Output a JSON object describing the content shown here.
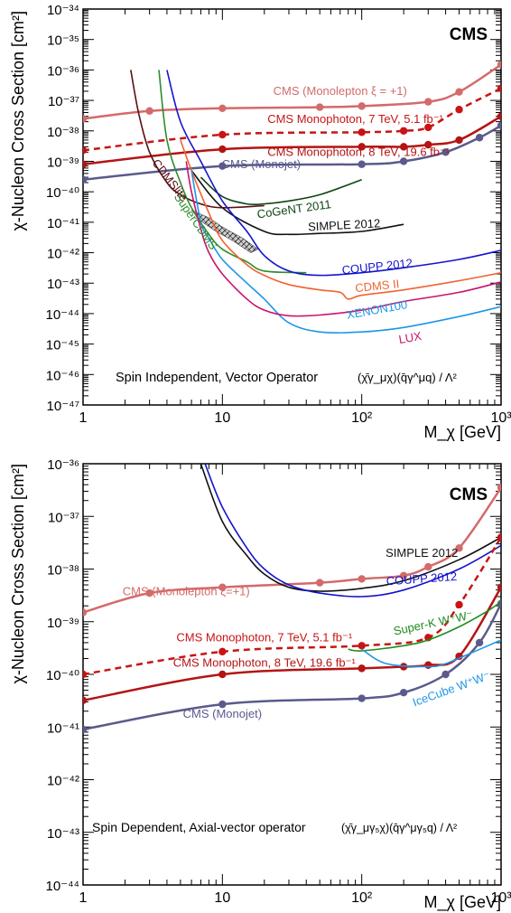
{
  "figure": {
    "panels": [
      "top",
      "bottom"
    ]
  },
  "chart_data": [
    {
      "type": "line",
      "panel": "top",
      "badge": "CMS",
      "xlabel": "M_χ [GeV]",
      "ylabel": "χ-Nucleon Cross Section [cm²]",
      "x_scale": "log",
      "y_scale": "log",
      "xlim": [
        1,
        1000
      ],
      "ylim": [
        1e-47,
        1e-34
      ],
      "x_ticks": [
        "1",
        "10",
        "10²",
        "10³"
      ],
      "y_ticks": [
        "10⁻⁴⁷",
        "10⁻⁴⁶",
        "10⁻⁴⁵",
        "10⁻⁴⁴",
        "10⁻⁴³",
        "10⁻⁴²",
        "10⁻⁴¹",
        "10⁻⁴⁰",
        "10⁻³⁹",
        "10⁻³⁸",
        "10⁻³⁷",
        "10⁻³⁶",
        "10⁻³⁵",
        "10⁻³⁴"
      ],
      "annotation_main": "Spin Independent, Vector Operator",
      "annotation_operator": "(χ̄γ_μχ)(q̄γ^μq) / Λ²",
      "series": [
        {
          "name": "CMS (Monolepton ξ = +1)",
          "color": "#d46a6a",
          "width": 2.5,
          "dashed": false,
          "markers": true,
          "x": [
            1,
            3,
            10,
            50,
            100,
            300,
            500,
            1000
          ],
          "y": [
            2.5e-38,
            4.5e-38,
            5.5e-38,
            6e-38,
            6.5e-38,
            9e-38,
            1.9e-37,
            1.5e-36
          ]
        },
        {
          "name": "CMS Monophoton, 7 TeV, 5.1 fb⁻¹",
          "color": "#c81414",
          "width": 2.5,
          "dashed": true,
          "markers": true,
          "x": [
            1,
            10,
            100,
            200,
            300,
            500,
            1000
          ],
          "y": [
            2.3e-39,
            7.5e-39,
            9e-39,
            1e-38,
            1.3e-38,
            5e-38,
            2.5e-37
          ]
        },
        {
          "name": "CMS Monophoton, 8 TeV, 19.6 fb⁻¹",
          "color": "#b41414",
          "width": 2.5,
          "dashed": false,
          "markers": true,
          "x": [
            1,
            10,
            100,
            200,
            300,
            500,
            1000
          ],
          "y": [
            8e-40,
            2.5e-39,
            3e-39,
            3e-39,
            3.5e-39,
            5e-39,
            3e-38
          ]
        },
        {
          "name": "CMS (Monojet)",
          "color": "#5a5a8c",
          "width": 2.5,
          "dashed": false,
          "markers": true,
          "x": [
            1,
            10,
            100,
            200,
            400,
            700,
            1000
          ],
          "y": [
            2.5e-40,
            7e-40,
            8e-40,
            1e-39,
            2e-39,
            6e-39,
            1.5e-38
          ]
        },
        {
          "name": "CoGeNT 2011",
          "color": "#0f4614",
          "width": 1.6,
          "dashed": false,
          "markers": false,
          "x": [
            7,
            10,
            15,
            20,
            30,
            50,
            100
          ],
          "y": [
            3e-40,
            7e-41,
            4e-41,
            4e-41,
            5e-41,
            8e-41,
            2.5e-40
          ]
        },
        {
          "name": "SIMPLE 2012",
          "color": "#111111",
          "width": 1.6,
          "dashed": false,
          "markers": false,
          "x": [
            6,
            10,
            20,
            30,
            50,
            100,
            200
          ],
          "y": [
            5e-40,
            3e-41,
            5e-42,
            4e-42,
            4.3e-42,
            5e-42,
            8.5e-42
          ]
        },
        {
          "name": "CDMSlite",
          "color": "#5a0f14",
          "width": 1.6,
          "dashed": false,
          "markers": false,
          "x": [
            2.2,
            2.5,
            3,
            4,
            5,
            7,
            10,
            20
          ],
          "y": [
            1e-36,
            4e-38,
            2e-39,
            2e-40,
            8e-41,
            4e-41,
            3e-41,
            3.5e-41
          ]
        },
        {
          "name": "SuperCDMS",
          "color": "#2d8c2d",
          "width": 1.6,
          "dashed": false,
          "markers": false,
          "x": [
            3.5,
            4,
            5,
            6,
            8,
            10,
            15,
            20,
            40
          ],
          "y": [
            1e-36,
            5e-39,
            2e-40,
            3e-41,
            4e-42,
            1.3e-42,
            5e-43,
            2.5e-43,
            2.2e-43
          ]
        },
        {
          "name": "COUPP 2012",
          "color": "#1414cc",
          "width": 1.6,
          "dashed": false,
          "markers": false,
          "x": [
            4,
            5,
            7,
            10,
            15,
            20,
            30,
            50,
            100,
            200,
            500,
            1000
          ],
          "y": [
            1e-36,
            2e-38,
            1e-39,
            5e-41,
            5e-42,
            8e-43,
            2.5e-43,
            1.8e-43,
            2.2e-43,
            3.2e-43,
            6e-43,
            1.2e-42
          ]
        },
        {
          "name": "CDMS II",
          "color": "#f06432",
          "width": 1.6,
          "dashed": false,
          "markers": false,
          "x": [
            5,
            6,
            8,
            10,
            15,
            20,
            30,
            50,
            70,
            80,
            100,
            200,
            500,
            1000
          ],
          "y": [
            5e-39,
            5e-40,
            2e-41,
            2.5e-42,
            4e-43,
            1.8e-43,
            9e-44,
            6e-44,
            5e-44,
            3e-44,
            4e-44,
            6e-44,
            1.2e-43,
            2.2e-43
          ]
        },
        {
          "name": "XENON100",
          "color": "#1e96e6",
          "width": 1.6,
          "dashed": false,
          "markers": false,
          "x": [
            6,
            7,
            8,
            10,
            15,
            20,
            30,
            50,
            100,
            200,
            500,
            1000
          ],
          "y": [
            5e-40,
            1e-41,
            3e-42,
            6e-43,
            1e-43,
            3e-44,
            5e-45,
            2.5e-45,
            2.5e-45,
            3.5e-45,
            8e-45,
            1.7e-44
          ]
        },
        {
          "name": "LUX",
          "color": "#c8146e",
          "width": 1.6,
          "dashed": false,
          "markers": false,
          "x": [
            5.5,
            6,
            7,
            8,
            10,
            15,
            20,
            30,
            50,
            100,
            200,
            500,
            1000
          ],
          "y": [
            1e-39,
            1e-40,
            6e-42,
            1e-42,
            2e-43,
            3e-44,
            1.3e-44,
            8.5e-45,
            9e-45,
            1.3e-44,
            2.5e-44,
            5e-44,
            1.1e-43
          ]
        }
      ],
      "region": {
        "x": [
          6,
          8,
          10,
          14,
          18,
          16,
          12,
          9,
          7,
          6
        ],
        "y": [
          2.5e-41,
          1.4e-41,
          7e-42,
          3e-42,
          1.3e-42,
          1e-42,
          2.4e-42,
          5e-42,
          1.1e-41,
          2.5e-41
        ]
      },
      "curve_labels": [
        {
          "text": "CMS (Monolepton ξ = +1)",
          "x": 70,
          "y": 1.5e-37,
          "color": "#d46a6a",
          "rot": 0
        },
        {
          "text": "CMS Monophoton, 7 TeV, 5.1 fb⁻¹",
          "x": 90,
          "y": 1.8e-38,
          "color": "#c81414",
          "rot": 0
        },
        {
          "text": "CMS Monophoton, 8 TeV, 19.6 fb⁻¹",
          "x": 95,
          "y": 1.5e-39,
          "color": "#b41414",
          "rot": 0
        },
        {
          "text": "CMS (Monojet)",
          "x": 19,
          "y": 6e-40,
          "color": "#5a5a8c",
          "rot": 0
        },
        {
          "text": "CDMSlite",
          "x": 4.0,
          "y": 2e-40,
          "color": "#5a0f14",
          "rot": 52
        },
        {
          "text": "SuperCDMS",
          "x": 6.1,
          "y": 9e-42,
          "color": "#2d8c2d",
          "rot": 55
        },
        {
          "text": "CoGeNT 2011",
          "x": 33,
          "y": 2e-41,
          "color": "#0f4614",
          "rot": -8
        },
        {
          "text": "SIMPLE 2012",
          "x": 75,
          "y": 6e-42,
          "color": "#111111",
          "rot": -3
        },
        {
          "text": "COUPP 2012",
          "x": 130,
          "y": 2.6e-43,
          "color": "#1414cc",
          "rot": -6
        },
        {
          "text": "CDMS II",
          "x": 130,
          "y": 6e-44,
          "color": "#f06432",
          "rot": -6
        },
        {
          "text": "XENON100",
          "x": 130,
          "y": 1e-44,
          "color": "#1e96e6",
          "rot": -10
        },
        {
          "text": "LUX",
          "x": 225,
          "y": 1.2e-45,
          "color": "#c8146e",
          "rot": -10
        }
      ]
    },
    {
      "type": "line",
      "panel": "bottom",
      "badge": "CMS",
      "xlabel": "M_χ [GeV]",
      "ylabel": "χ-Nucleon Cross Section [cm²]",
      "x_scale": "log",
      "y_scale": "log",
      "xlim": [
        1,
        1000
      ],
      "ylim": [
        1e-44,
        1e-36
      ],
      "x_ticks": [
        "1",
        "10",
        "10²",
        "10³"
      ],
      "y_ticks": [
        "10⁻⁴⁴",
        "10⁻⁴³",
        "10⁻⁴²",
        "10⁻⁴¹",
        "10⁻⁴⁰",
        "10⁻³⁹",
        "10⁻³⁸",
        "10⁻³⁷",
        "10⁻³⁶"
      ],
      "annotation_main": "Spin Dependent, Axial-vector operator",
      "annotation_operator": "(χ̄γ_μγ₅χ)(q̄γ^μγ₅q) / Λ²",
      "series": [
        {
          "name": "CMS (Monolepton ξ=+1)",
          "color": "#d46a6a",
          "width": 2.5,
          "dashed": false,
          "markers": true,
          "x": [
            1,
            3,
            10,
            50,
            100,
            200,
            300,
            500,
            1000
          ],
          "y": [
            1.5e-39,
            3.5e-39,
            4.5e-39,
            5.5e-39,
            6.5e-39,
            7.5e-39,
            1.1e-38,
            2.5e-38,
            3.5e-37
          ]
        },
        {
          "name": "SIMPLE 2012",
          "color": "#111111",
          "width": 1.6,
          "dashed": false,
          "markers": false,
          "x": [
            7,
            10,
            15,
            20,
            30,
            50,
            100,
            200,
            500,
            1000
          ],
          "y": [
            1e-36,
            8e-38,
            1.8e-38,
            8e-39,
            4.5e-39,
            3.8e-39,
            4.3e-39,
            6e-39,
            1.5e-38,
            4e-38
          ]
        },
        {
          "name": "COUPP 2012",
          "color": "#1414cc",
          "width": 1.6,
          "dashed": false,
          "markers": false,
          "x": [
            7.5,
            10,
            15,
            20,
            30,
            50,
            100,
            200,
            500,
            1000
          ],
          "y": [
            1e-36,
            1.5e-37,
            2.5e-38,
            1e-38,
            5e-39,
            3.5e-39,
            3e-39,
            4e-39,
            1e-38,
            2.8e-38
          ]
        },
        {
          "name": "CMS Monophoton, 7 TeV, 5.1 fb⁻¹",
          "color": "#c81414",
          "width": 2.5,
          "dashed": true,
          "markers": true,
          "x": [
            1,
            10,
            100,
            300,
            500,
            1000
          ],
          "y": [
            1e-40,
            2.7e-40,
            3.5e-40,
            5e-40,
            2.1e-39,
            4e-38
          ]
        },
        {
          "name": "CMS Monophoton, 8 TeV, 19.6 fb⁻¹",
          "color": "#b41414",
          "width": 2.5,
          "dashed": false,
          "markers": true,
          "x": [
            1,
            10,
            100,
            200,
            300,
            500,
            1000
          ],
          "y": [
            3.2e-41,
            1e-40,
            1.3e-40,
            1.4e-40,
            1.5e-40,
            2.2e-40,
            4.5e-39
          ]
        },
        {
          "name": "CMS (Monojet)",
          "color": "#5a5a8c",
          "width": 2.5,
          "dashed": false,
          "markers": true,
          "x": [
            1,
            10,
            100,
            200,
            400,
            700,
            1000
          ],
          "y": [
            9e-42,
            2.7e-41,
            3.5e-41,
            4.5e-41,
            1e-40,
            4e-40,
            2.2e-39
          ]
        },
        {
          "name": "Super-K W⁺W⁻",
          "color": "#1e8c1e",
          "width": 1.6,
          "dashed": false,
          "markers": false,
          "x": [
            80,
            100,
            200,
            300,
            500,
            800,
            1000
          ],
          "y": [
            3e-40,
            2.8e-40,
            3.5e-40,
            4.5e-40,
            8e-40,
            1.6e-39,
            2.4e-39
          ]
        },
        {
          "name": "IceCube W⁺W⁻",
          "color": "#1e96e6",
          "width": 1.6,
          "dashed": false,
          "markers": false,
          "x": [
            100,
            150,
            300,
            400,
            600,
            1000
          ],
          "y": [
            3e-40,
            1.6e-40,
            1.4e-40,
            1.6e-40,
            2.5e-40,
            4.5e-40
          ]
        }
      ],
      "curve_labels": [
        {
          "text": "SIMPLE 2012",
          "x": 270,
          "y": 1.7e-38,
          "color": "#111111",
          "rot": 0
        },
        {
          "text": "COUPP 2012",
          "x": 270,
          "y": 5.5e-39,
          "color": "#1414cc",
          "rot": -4
        },
        {
          "text": "CMS (Monolepton ξ=+1)",
          "x": 5.5,
          "y": 3.2e-39,
          "color": "#d46a6a",
          "rot": 0
        },
        {
          "text": "CMS Monophoton, 7 TeV, 5.1 fb⁻¹",
          "x": 20,
          "y": 4.2e-40,
          "color": "#c81414",
          "rot": 0
        },
        {
          "text": "CMS Monophoton, 8 TeV, 19.6 fb⁻¹",
          "x": 20,
          "y": 1.4e-40,
          "color": "#b41414",
          "rot": 0
        },
        {
          "text": "CMS (Monojet)",
          "x": 10,
          "y": 1.5e-41,
          "color": "#5a5a8c",
          "rot": 0
        },
        {
          "text": "Super-K W⁺W⁻",
          "x": 330,
          "y": 8e-40,
          "color": "#1e8c1e",
          "rot": -12
        },
        {
          "text": "IceCube W⁺W⁻",
          "x": 450,
          "y": 4.5e-41,
          "color": "#1e96e6",
          "rot": -20
        }
      ]
    }
  ]
}
